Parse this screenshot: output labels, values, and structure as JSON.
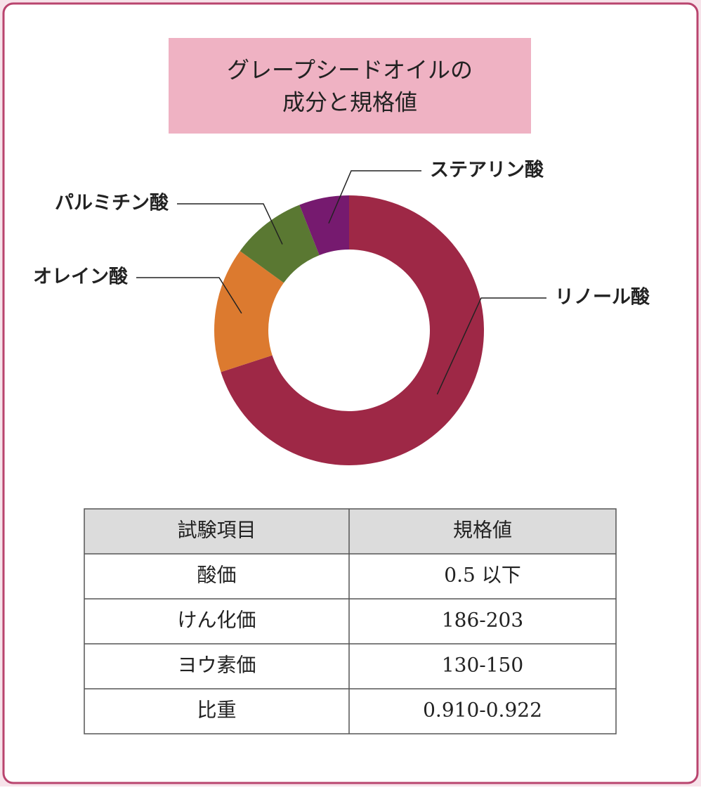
{
  "chart_data": {
    "type": "donut",
    "title": [
      "グレープシードオイルの",
      "成分と規格値"
    ],
    "categories": [
      "リノール酸",
      "オレイン酸",
      "パルミチン酸",
      "ステアリン酸"
    ],
    "values": [
      70,
      15,
      9,
      6
    ],
    "colors": [
      "#9e2846",
      "#dc7a2f",
      "#5a7832",
      "#761a6f"
    ]
  },
  "table": {
    "header": [
      "試験項目",
      "規格値"
    ],
    "rows": [
      [
        "酸価",
        "0.5 以下"
      ],
      [
        "けん化価",
        "186-203"
      ],
      [
        "ヨウ素価",
        "130-150"
      ],
      [
        "比重",
        "0.910-0.922"
      ]
    ]
  }
}
